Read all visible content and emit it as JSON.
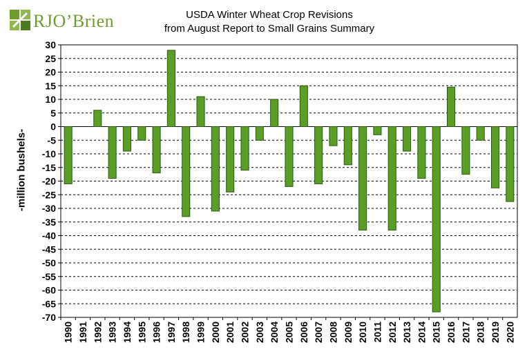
{
  "logo": {
    "text": "RJO’Brien",
    "mark_colors": [
      "#6f9d2d",
      "#8fb84e",
      "#4d7a1f"
    ]
  },
  "colors": {
    "bar": "#5a9e28",
    "bar_stroke": "#2a5a0c",
    "grid": "#000000"
  },
  "chart_data": {
    "type": "bar",
    "title": "USDA Winter Wheat Crop Revisions",
    "subtitle": "from August Report to Small Grains Summary",
    "xlabel": "",
    "ylabel": "-million bushels-",
    "ylim": [
      -70,
      30
    ],
    "yticks": [
      30,
      25,
      20,
      15,
      10,
      5,
      0,
      -5,
      -10,
      -15,
      -20,
      -25,
      -30,
      -35,
      -40,
      -45,
      -50,
      -55,
      -60,
      -65,
      -70
    ],
    "grid": "horizontal dashed",
    "legend": "none",
    "categories": [
      "1990",
      "1991",
      "1992",
      "1993",
      "1994",
      "1995",
      "1996",
      "1997",
      "1998",
      "1999",
      "2000",
      "2001",
      "2002",
      "2003",
      "2004",
      "2005",
      "2006",
      "2007",
      "2008",
      "2009",
      "2010",
      "2011",
      "2012",
      "2013",
      "2014",
      "2015",
      "2016",
      "2017",
      "2018",
      "2019",
      "2020"
    ],
    "values": [
      -21,
      0,
      6,
      -19,
      -9,
      -5,
      -17,
      28,
      -33,
      11,
      -31,
      -24,
      -16,
      -5,
      10,
      -22,
      15,
      -21,
      -7,
      -14,
      -38,
      -3,
      -38,
      -9,
      -19,
      -68,
      14.5,
      -17.5,
      -5,
      -22.5,
      -27.5
    ]
  }
}
